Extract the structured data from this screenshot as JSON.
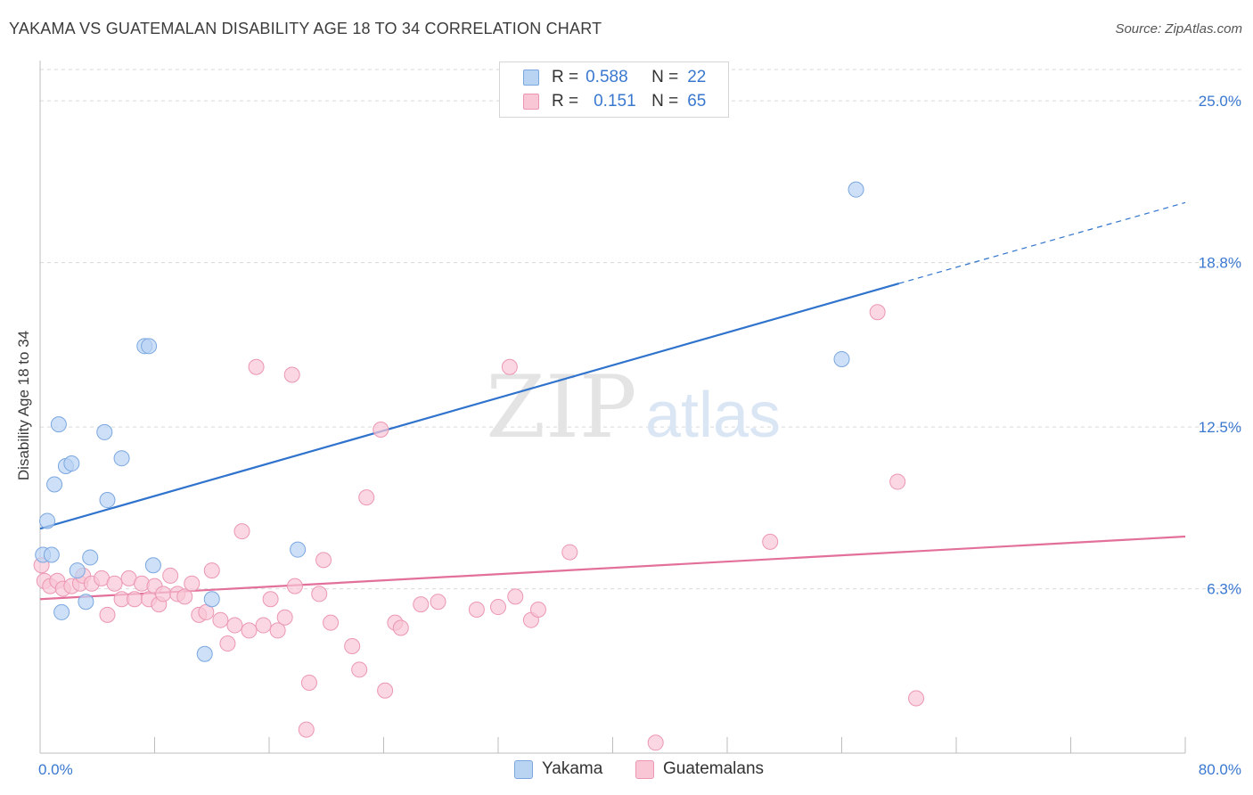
{
  "title": "YAKAMA VS GUATEMALAN DISABILITY AGE 18 TO 34 CORRELATION CHART",
  "source": "Source: ZipAtlas.com",
  "watermark": {
    "zip": "ZIP",
    "atlas": "atlas"
  },
  "legend": {
    "r_label": "R =",
    "n_label": "N =",
    "rows": [
      {
        "name": "Yakama",
        "r": "0.588",
        "n": "22"
      },
      {
        "name": "Guatemalans",
        "r": "0.151",
        "n": "65"
      }
    ]
  },
  "colors": {
    "yakama_fill": "#b9d3f3",
    "yakama_stroke": "#7aa7e0",
    "yakama_line": "#2f73cc",
    "guat_fill": "#f8c6d5",
    "guat_stroke": "#ec97b2",
    "guat_line": "#e2709a",
    "grid": "#d9d9d9",
    "axis_text": "#3a78d0"
  },
  "chart_data": {
    "type": "scatter",
    "xlabel": "",
    "ylabel": "Disability Age 18 to 34",
    "xlim": [
      0,
      80
    ],
    "ylim": [
      0,
      26.2
    ],
    "x_tick_labels": [
      "0.0%",
      "80.0%"
    ],
    "y_ticks": [
      6.3,
      12.5,
      18.8,
      25.0
    ],
    "y_tick_labels": [
      "6.3%",
      "12.5%",
      "18.8%",
      "25.0%"
    ],
    "series": [
      {
        "name": "Yakama",
        "points": [
          [
            0.2,
            7.6
          ],
          [
            0.5,
            8.9
          ],
          [
            0.8,
            7.6
          ],
          [
            1.0,
            10.3
          ],
          [
            1.3,
            12.6
          ],
          [
            1.5,
            5.4
          ],
          [
            1.8,
            11.0
          ],
          [
            2.2,
            11.1
          ],
          [
            2.6,
            7.0
          ],
          [
            3.2,
            5.8
          ],
          [
            3.5,
            7.5
          ],
          [
            4.5,
            12.3
          ],
          [
            4.7,
            9.7
          ],
          [
            5.7,
            11.3
          ],
          [
            7.3,
            15.6
          ],
          [
            7.6,
            15.6
          ],
          [
            7.9,
            7.2
          ],
          [
            11.5,
            3.8
          ],
          [
            12.0,
            5.9
          ],
          [
            18.0,
            7.8
          ],
          [
            56.0,
            15.1
          ],
          [
            57.0,
            21.6
          ]
        ],
        "trend": {
          "x0": 0,
          "y0": 8.6,
          "x1": 60,
          "y1": 18.0,
          "dash_to_x": 80,
          "dash_to_y": 21.1
        }
      },
      {
        "name": "Guatemalans",
        "points": [
          [
            0.3,
            6.6
          ],
          [
            0.7,
            6.4
          ],
          [
            1.2,
            6.6
          ],
          [
            1.6,
            6.3
          ],
          [
            2.2,
            6.4
          ],
          [
            2.8,
            6.5
          ],
          [
            3.0,
            6.8
          ],
          [
            3.6,
            6.5
          ],
          [
            4.3,
            6.7
          ],
          [
            4.7,
            5.3
          ],
          [
            5.2,
            6.5
          ],
          [
            5.7,
            5.9
          ],
          [
            6.2,
            6.7
          ],
          [
            6.6,
            5.9
          ],
          [
            7.1,
            6.5
          ],
          [
            7.6,
            5.9
          ],
          [
            8.0,
            6.4
          ],
          [
            8.3,
            5.7
          ],
          [
            8.6,
            6.1
          ],
          [
            9.1,
            6.8
          ],
          [
            9.6,
            6.1
          ],
          [
            10.1,
            6.0
          ],
          [
            10.6,
            6.5
          ],
          [
            11.1,
            5.3
          ],
          [
            11.6,
            5.4
          ],
          [
            12.0,
            7.0
          ],
          [
            12.6,
            5.1
          ],
          [
            13.1,
            4.2
          ],
          [
            13.6,
            4.9
          ],
          [
            14.1,
            8.5
          ],
          [
            14.6,
            4.7
          ],
          [
            15.1,
            14.8
          ],
          [
            15.6,
            4.9
          ],
          [
            16.1,
            5.9
          ],
          [
            16.6,
            4.7
          ],
          [
            17.1,
            5.2
          ],
          [
            17.6,
            14.5
          ],
          [
            17.8,
            6.4
          ],
          [
            18.6,
            0.9
          ],
          [
            18.8,
            2.7
          ],
          [
            19.5,
            6.1
          ],
          [
            19.8,
            7.4
          ],
          [
            20.3,
            5.0
          ],
          [
            21.8,
            4.1
          ],
          [
            22.3,
            3.2
          ],
          [
            22.8,
            9.8
          ],
          [
            23.8,
            12.4
          ],
          [
            24.1,
            2.4
          ],
          [
            24.8,
            5.0
          ],
          [
            25.2,
            4.8
          ],
          [
            26.6,
            5.7
          ],
          [
            27.8,
            5.8
          ],
          [
            30.5,
            5.5
          ],
          [
            32.0,
            5.6
          ],
          [
            32.8,
            14.8
          ],
          [
            33.2,
            6.0
          ],
          [
            34.3,
            5.1
          ],
          [
            34.8,
            5.5
          ],
          [
            37.0,
            7.7
          ],
          [
            43.0,
            0.4
          ],
          [
            51.0,
            8.1
          ],
          [
            58.5,
            16.9
          ],
          [
            59.9,
            10.4
          ],
          [
            61.2,
            2.1
          ],
          [
            0.1,
            7.2
          ]
        ],
        "trend": {
          "x0": 0,
          "y0": 5.9,
          "x1": 80,
          "y1": 8.3
        }
      }
    ]
  }
}
